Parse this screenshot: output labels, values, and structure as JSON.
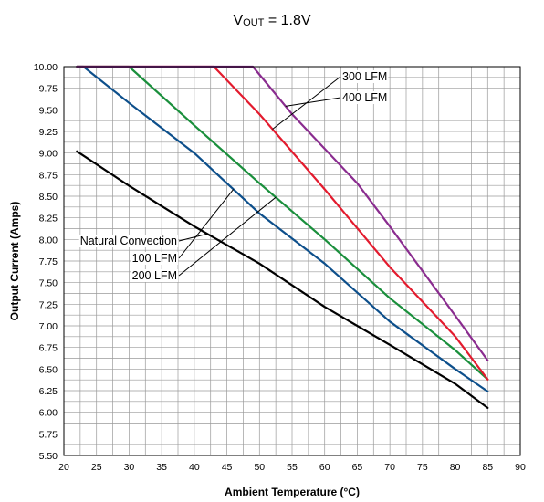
{
  "chart_data": {
    "type": "line",
    "title_main": "V",
    "title_sub": "OUT",
    "title_rest": " = 1.8V",
    "xlabel": "Ambient Temperature (°C)",
    "ylabel": "Output Current (Amps)",
    "xlim": [
      20,
      90
    ],
    "ylim": [
      5.5,
      10.0
    ],
    "xticks": [
      "20",
      "25",
      "30",
      "35",
      "40",
      "45",
      "50",
      "55",
      "60",
      "65",
      "70",
      "75",
      "80",
      "85",
      "90"
    ],
    "yticks": [
      "5.50",
      "5.75",
      "6.00",
      "6.25",
      "6.50",
      "6.75",
      "7.00",
      "7.25",
      "7.50",
      "7.75",
      "8.00",
      "8.25",
      "8.50",
      "8.75",
      "9.00",
      "9.25",
      "9.50",
      "9.75",
      "10.00"
    ],
    "grid": true,
    "series": [
      {
        "name": "Natural Convection",
        "color": "#000000",
        "x": [
          22,
          30,
          40,
          50,
          60,
          70,
          80,
          85
        ],
        "y": [
          9.02,
          8.62,
          8.15,
          7.72,
          7.22,
          6.78,
          6.33,
          6.05
        ]
      },
      {
        "name": "100 LFM",
        "color": "#0d4f8b",
        "x": [
          22,
          23,
          30,
          40,
          50,
          60,
          70,
          80,
          85
        ],
        "y": [
          10.0,
          10.0,
          9.58,
          9.0,
          8.3,
          7.72,
          7.05,
          6.5,
          6.24
        ]
      },
      {
        "name": "200 LFM",
        "color": "#1a8f3c",
        "x": [
          22,
          30,
          40,
          50,
          60,
          70,
          80,
          85
        ],
        "y": [
          10.0,
          10.0,
          9.32,
          8.65,
          8.0,
          7.32,
          6.72,
          6.38
        ]
      },
      {
        "name": "300 LFM",
        "color": "#e31b2e",
        "x": [
          22,
          43,
          50,
          60,
          70,
          80,
          85
        ],
        "y": [
          10.0,
          10.0,
          9.45,
          8.58,
          7.68,
          6.88,
          6.38
        ]
      },
      {
        "name": "400 LFM",
        "color": "#8a2c8f",
        "x": [
          22,
          49,
          55,
          65,
          70,
          80,
          85
        ],
        "y": [
          10.0,
          10.0,
          9.45,
          8.65,
          8.15,
          7.12,
          6.6
        ]
      }
    ],
    "annotations": [
      {
        "text": "Natural Convection",
        "series": "Natural Convection",
        "at_x": 42
      },
      {
        "text": "100 LFM",
        "series": "100 LFM",
        "at_x": 46
      },
      {
        "text": "200 LFM",
        "series": "200 LFM",
        "at_x": 52.5
      },
      {
        "text": "300 LFM",
        "series": "300 LFM",
        "at_x": 52
      },
      {
        "text": "400 LFM",
        "series": "400 LFM",
        "at_x": 54
      }
    ]
  }
}
